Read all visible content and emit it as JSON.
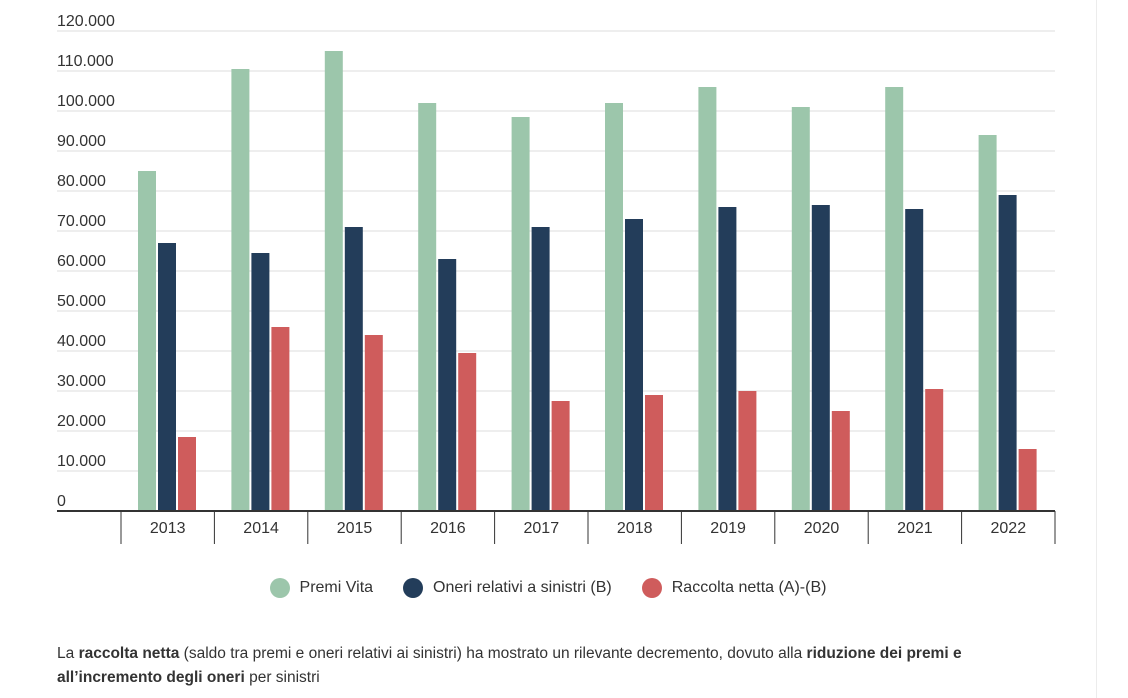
{
  "chart_data": {
    "type": "bar",
    "categories": [
      "2013",
      "2014",
      "2015",
      "2016",
      "2017",
      "2018",
      "2019",
      "2020",
      "2021",
      "2022"
    ],
    "series": [
      {
        "name": "Premi Vita",
        "color": "#9cc6ab",
        "values": [
          85000,
          110500,
          115000,
          102000,
          98500,
          102000,
          106000,
          101000,
          106000,
          94000
        ]
      },
      {
        "name": "Oneri relativi a sinistri (B)",
        "color": "#233d5a",
        "values": [
          67000,
          64500,
          71000,
          63000,
          71000,
          73000,
          76000,
          76500,
          75500,
          79000
        ]
      },
      {
        "name": "Raccolta netta (A)-(B)",
        "color": "#cf5c5c",
        "values": [
          18500,
          46000,
          44000,
          39500,
          27500,
          29000,
          30000,
          25000,
          30500,
          15500
        ]
      }
    ],
    "yticks": [
      "0",
      "10.000",
      "20.000",
      "30.000",
      "40.000",
      "50.000",
      "60.000",
      "70.000",
      "80.000",
      "90.000",
      "100.000",
      "110.000",
      "120.000"
    ],
    "ylim": [
      0,
      120000
    ],
    "grid": true,
    "legend_position": "bottom-center"
  },
  "caption": {
    "t1": "La ",
    "b1": "raccolta netta",
    "t2": " (saldo tra premi e oneri relativi ai sinistri) ha mostrato un rilevante decremento, dovuto alla ",
    "b2": "riduzione dei premi e all’incremento degli oneri",
    "t3": " per sinistri"
  }
}
